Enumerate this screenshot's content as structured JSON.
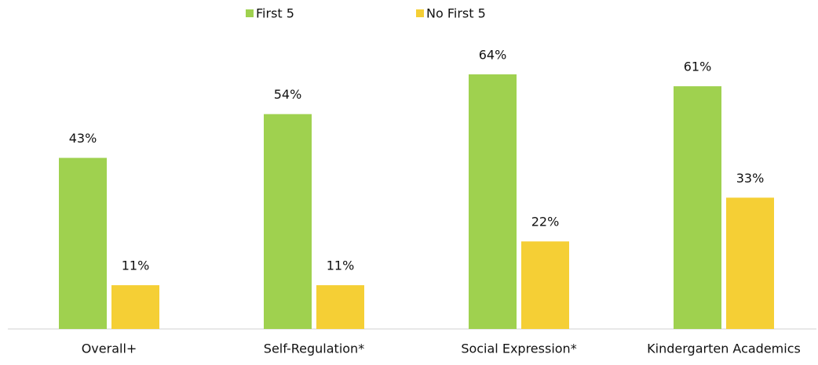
{
  "chart_data": {
    "type": "bar",
    "categories": [
      "Overall+",
      "Self-Regulation*",
      "Social Expression*",
      "Kindergarten Academics"
    ],
    "series": [
      {
        "name": "First 5",
        "color": "#9fd14f",
        "values": [
          43,
          54,
          64,
          61
        ],
        "value_labels": [
          "43%",
          "54%",
          "64%",
          "61%"
        ]
      },
      {
        "name": "No First 5",
        "color": "#f5cf35",
        "values": [
          11,
          11,
          22,
          33
        ],
        "value_labels": [
          "11%",
          "11%",
          "22%",
          "33%"
        ]
      }
    ]
  }
}
